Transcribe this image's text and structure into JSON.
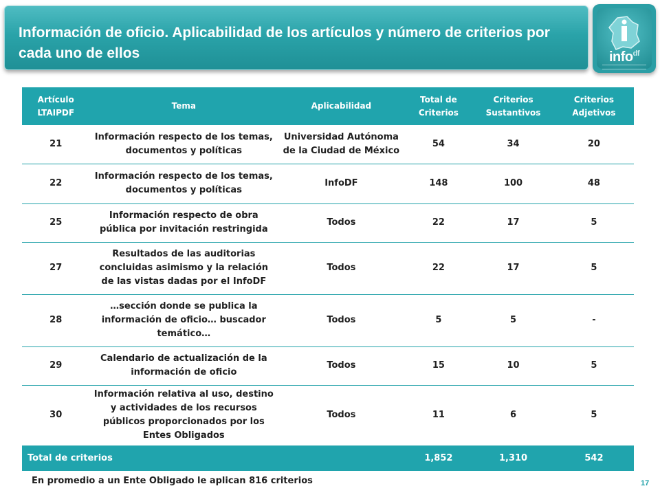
{
  "header": {
    "title": "Información de oficio. Aplicabilidad de los artículos y número de criterios por cada uno de ellos",
    "logo_word": "info",
    "logo_suffix": "df"
  },
  "table": {
    "columns": [
      "Artículo LTAIPDF",
      "Tema",
      "Aplicabilidad",
      "Total de Criterios",
      "Criterios Sustantivos",
      "Criterios Adjetivos"
    ],
    "rows": [
      {
        "articulo": "21",
        "tema": "Información respecto de los temas, documentos y políticas",
        "aplicabilidad": "Universidad Autónoma de la Ciudad de México",
        "total": "54",
        "sustantivos": "34",
        "adjetivos": "20"
      },
      {
        "articulo": "22",
        "tema": "Información respecto de los temas, documentos y políticas",
        "aplicabilidad": "InfoDF",
        "total": "148",
        "sustantivos": "100",
        "adjetivos": "48"
      },
      {
        "articulo": "25",
        "tema": "Información respecto de obra pública por invitación restringida",
        "aplicabilidad": "Todos",
        "total": "22",
        "sustantivos": "17",
        "adjetivos": "5"
      },
      {
        "articulo": "27",
        "tema": "Resultados de las auditorias concluidas asimismo y la relación de las vistas dadas por el InfoDF",
        "aplicabilidad": "Todos",
        "total": "22",
        "sustantivos": "17",
        "adjetivos": "5"
      },
      {
        "articulo": "28",
        "tema": "…sección donde se publica la información de oficio… buscador temático…",
        "aplicabilidad": "Todos",
        "total": "5",
        "sustantivos": "5",
        "adjetivos": "-"
      },
      {
        "articulo": "29",
        "tema": "Calendario de actualización de la información de oficio",
        "aplicabilidad": "Todos",
        "total": "15",
        "sustantivos": "10",
        "adjetivos": "5"
      },
      {
        "articulo": "30",
        "tema": "Información relativa al uso, destino y actividades de los recursos públicos proporcionados por los Entes Obligados",
        "aplicabilidad": "Todos",
        "total": "11",
        "sustantivos": "6",
        "adjetivos": "5"
      }
    ],
    "total_row": {
      "label": "Total de criterios",
      "total": "1,852",
      "sustantivos": "1,310",
      "adjetivos": "542"
    }
  },
  "footer": {
    "note": "En promedio a un Ente Obligado le aplican 816 criterios",
    "page_number": "17"
  },
  "colors": {
    "accent": "#20a4ad",
    "banner": "#2aa3a9",
    "text": "#1f1f1f"
  }
}
